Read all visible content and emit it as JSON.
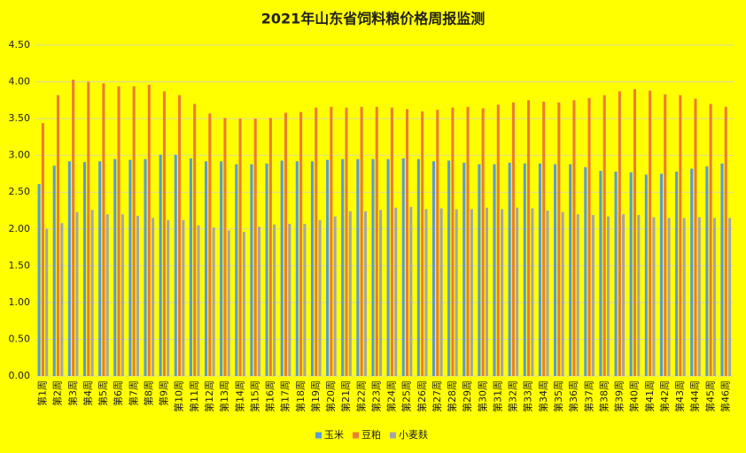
{
  "chart_data": {
    "type": "bar",
    "title": "2021年山东省饲料粮价格周报监测",
    "categories": [
      "第1周",
      "第2周",
      "第3周",
      "第4周",
      "第5周",
      "第6周",
      "第7周",
      "第8周",
      "第9周",
      "第10周",
      "第11周",
      "第12周",
      "第13周",
      "第14周",
      "第15周",
      "第16周",
      "第17周",
      "第18周",
      "第19周",
      "第20周",
      "第21周",
      "第22周",
      "第23周",
      "第24周",
      "第25周",
      "第26周",
      "第27周",
      "第28周",
      "第29周",
      "第30周",
      "第31周",
      "第32周",
      "第33周",
      "第34周",
      "第35周",
      "第36周",
      "第37周",
      "第38周",
      "第39周",
      "第40周",
      "第41周",
      "第42周",
      "第43周",
      "第44周",
      "第45周",
      "第46周"
    ],
    "series": [
      {
        "name": "玉米",
        "color": "#5b9bd5",
        "values": [
          2.61,
          2.86,
          2.92,
          2.91,
          2.92,
          2.95,
          2.94,
          2.95,
          3.01,
          3.01,
          2.96,
          2.92,
          2.92,
          2.88,
          2.88,
          2.89,
          2.93,
          2.92,
          2.92,
          2.94,
          2.95,
          2.95,
          2.95,
          2.95,
          2.96,
          2.95,
          2.92,
          2.93,
          2.9,
          2.88,
          2.88,
          2.9,
          2.89,
          2.89,
          2.88,
          2.88,
          2.84,
          2.79,
          2.78,
          2.77,
          2.74,
          2.75,
          2.78,
          2.82,
          2.85,
          2.89
        ]
      },
      {
        "name": "豆粕",
        "color": "#ed7d31",
        "values": [
          3.44,
          3.82,
          4.03,
          4.0,
          3.98,
          3.94,
          3.94,
          3.96,
          3.87,
          3.82,
          3.7,
          3.57,
          3.51,
          3.5,
          3.5,
          3.51,
          3.58,
          3.59,
          3.65,
          3.66,
          3.65,
          3.66,
          3.66,
          3.65,
          3.63,
          3.6,
          3.62,
          3.65,
          3.66,
          3.64,
          3.69,
          3.72,
          3.75,
          3.73,
          3.72,
          3.75,
          3.78,
          3.82,
          3.87,
          3.9,
          3.88,
          3.83,
          3.82,
          3.77,
          3.7,
          3.66
        ]
      },
      {
        "name": "小麦麸",
        "color": "#a5a5a5",
        "values": [
          2.0,
          2.08,
          2.23,
          2.26,
          2.2,
          2.2,
          2.18,
          2.15,
          2.12,
          2.12,
          2.05,
          2.02,
          1.98,
          1.96,
          2.03,
          2.06,
          2.07,
          2.07,
          2.12,
          2.17,
          2.24,
          2.24,
          2.26,
          2.29,
          2.3,
          2.27,
          2.28,
          2.27,
          2.27,
          2.29,
          2.27,
          2.29,
          2.28,
          2.25,
          2.23,
          2.2,
          2.19,
          2.17,
          2.2,
          2.19,
          2.16,
          2.15,
          2.15,
          2.16,
          2.15,
          2.15
        ]
      }
    ],
    "ylim": [
      0,
      4.5
    ],
    "yticks": [
      {
        "value": 0,
        "label": "0.00"
      },
      {
        "value": 0.5,
        "label": "0.50"
      },
      {
        "value": 1,
        "label": "1.00"
      },
      {
        "value": 1.5,
        "label": "1.50"
      },
      {
        "value": 2,
        "label": "2.00"
      },
      {
        "value": 2.5,
        "label": "2.50"
      },
      {
        "value": 3,
        "label": "3.00"
      },
      {
        "value": 3.5,
        "label": "3.50"
      },
      {
        "value": 4,
        "label": "4.00"
      },
      {
        "value": 4.5,
        "label": "4.50"
      }
    ],
    "grid": true,
    "legend": "bottom"
  }
}
